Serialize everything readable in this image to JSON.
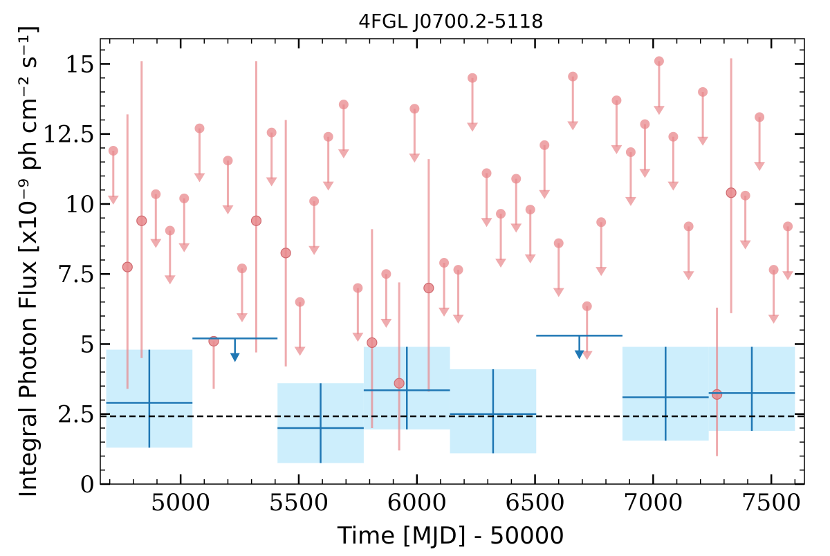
{
  "chart_data": {
    "type": "scatter",
    "title": "4FGL J0700.2-5118",
    "xlabel": "Time [MJD] - 50000",
    "ylabel": "Integral Photon Flux [x10⁻⁹ ph cm⁻² s⁻¹]",
    "xlim": [
      4660,
      7640
    ],
    "ylim": [
      0,
      15.9
    ],
    "x_ticks": [
      5000,
      5500,
      6000,
      6500,
      7000,
      7500
    ],
    "x_tick_labels": [
      "5000",
      "5500",
      "6000",
      "6500",
      "7000",
      "7500"
    ],
    "y_ticks": [
      0,
      2.5,
      5,
      7.5,
      10,
      12.5,
      15
    ],
    "y_tick_labels": [
      "0",
      "2.5",
      "5",
      "7.5",
      "10",
      "12.5",
      "15"
    ],
    "mean_flux_line": 2.42,
    "colors": {
      "short_bins": "#e8888c",
      "long_bins": "#1f77b4",
      "long_bin_band": "#cdeefc",
      "mean_line": "#000000"
    },
    "series": [
      {
        "bin": "short",
        "detections": [
          {
            "x": 4775,
            "y": 7.75,
            "ylo": 3.4,
            "yhi": 13.2
          },
          {
            "x": 4835,
            "y": 9.4,
            "ylo": 4.5,
            "yhi": 15.1
          },
          {
            "x": 5140,
            "y": 5.1,
            "ylo": 3.4,
            "yhi": 5.1
          },
          {
            "x": 5320,
            "y": 9.4,
            "ylo": 4.7,
            "yhi": 15.1
          },
          {
            "x": 5445,
            "y": 8.25,
            "ylo": 4.2,
            "yhi": 13.0
          },
          {
            "x": 5810,
            "y": 5.05,
            "ylo": 2.0,
            "yhi": 9.1
          },
          {
            "x": 5925,
            "y": 3.6,
            "ylo": 1.2,
            "yhi": 7.2
          },
          {
            "x": 6050,
            "y": 7.0,
            "ylo": 3.3,
            "yhi": 11.6
          },
          {
            "x": 7270,
            "y": 3.2,
            "ylo": 1.0,
            "yhi": 6.3
          },
          {
            "x": 7330,
            "y": 10.4,
            "ylo": 6.1,
            "yhi": 15.2
          }
        ],
        "upper_limits": [
          {
            "x": 4715,
            "y": 11.9
          },
          {
            "x": 4895,
            "y": 10.35
          },
          {
            "x": 4955,
            "y": 9.05
          },
          {
            "x": 5015,
            "y": 10.2
          },
          {
            "x": 5080,
            "y": 12.7
          },
          {
            "x": 5200,
            "y": 11.55
          },
          {
            "x": 5260,
            "y": 7.7
          },
          {
            "x": 5385,
            "y": 12.55
          },
          {
            "x": 5505,
            "y": 6.5
          },
          {
            "x": 5565,
            "y": 10.1
          },
          {
            "x": 5625,
            "y": 12.4
          },
          {
            "x": 5690,
            "y": 13.55
          },
          {
            "x": 5750,
            "y": 7.0
          },
          {
            "x": 5870,
            "y": 7.5
          },
          {
            "x": 5990,
            "y": 13.4
          },
          {
            "x": 6115,
            "y": 7.9
          },
          {
            "x": 6175,
            "y": 7.65
          },
          {
            "x": 6235,
            "y": 14.5
          },
          {
            "x": 6295,
            "y": 11.1
          },
          {
            "x": 6355,
            "y": 9.65
          },
          {
            "x": 6420,
            "y": 10.9
          },
          {
            "x": 6480,
            "y": 9.8
          },
          {
            "x": 6540,
            "y": 12.1
          },
          {
            "x": 6600,
            "y": 8.6
          },
          {
            "x": 6660,
            "y": 14.55
          },
          {
            "x": 6720,
            "y": 6.35
          },
          {
            "x": 6780,
            "y": 9.35
          },
          {
            "x": 6845,
            "y": 13.7
          },
          {
            "x": 6905,
            "y": 11.85
          },
          {
            "x": 6965,
            "y": 12.85
          },
          {
            "x": 7025,
            "y": 15.1
          },
          {
            "x": 7085,
            "y": 12.4
          },
          {
            "x": 7150,
            "y": 9.2
          },
          {
            "x": 7210,
            "y": 14.0
          },
          {
            "x": 7390,
            "y": 10.3
          },
          {
            "x": 7450,
            "y": 13.1
          },
          {
            "x": 7510,
            "y": 7.65
          },
          {
            "x": 7570,
            "y": 9.2
          }
        ]
      },
      {
        "bin": "long",
        "detections": [
          {
            "x0": 4685,
            "x1": 5050,
            "y": 2.9,
            "ylo": 1.3,
            "yhi": 4.8
          },
          {
            "x0": 5410,
            "x1": 5775,
            "y": 2.0,
            "ylo": 0.75,
            "yhi": 3.6
          },
          {
            "x0": 5775,
            "x1": 6140,
            "y": 3.35,
            "ylo": 1.95,
            "yhi": 4.9
          },
          {
            "x0": 6140,
            "x1": 6505,
            "y": 2.5,
            "ylo": 1.1,
            "yhi": 4.1
          },
          {
            "x0": 6870,
            "x1": 7235,
            "y": 3.1,
            "ylo": 1.55,
            "yhi": 4.9
          },
          {
            "x0": 7235,
            "x1": 7600,
            "y": 3.25,
            "ylo": 1.9,
            "yhi": 4.9
          }
        ],
        "upper_limits": [
          {
            "x0": 5050,
            "x1": 5410,
            "y": 5.2
          },
          {
            "x0": 6505,
            "x1": 6870,
            "y": 5.3
          }
        ]
      }
    ]
  }
}
